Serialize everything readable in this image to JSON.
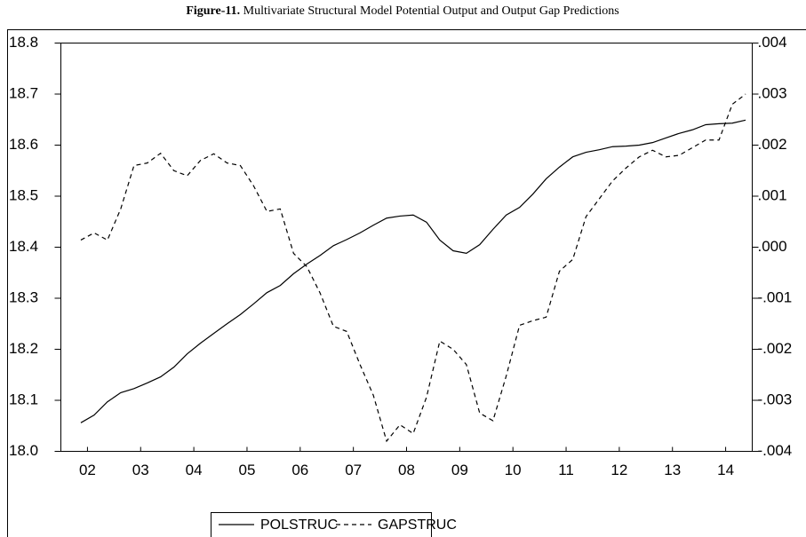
{
  "chart_data": {
    "type": "line",
    "title": {
      "label": "Figure-11.",
      "text": "Multivariate Structural Model Potential Output and Output Gap Predictions"
    },
    "x": [
      2002.375,
      2002.625,
      2002.875,
      2003.125,
      2003.375,
      2003.625,
      2003.875,
      2004.125,
      2004.375,
      2004.625,
      2004.875,
      2005.125,
      2005.375,
      2005.625,
      2005.875,
      2006.125,
      2006.375,
      2006.625,
      2006.875,
      2007.125,
      2007.375,
      2007.625,
      2007.875,
      2008.125,
      2008.375,
      2008.625,
      2008.875,
      2009.125,
      2009.375,
      2009.625,
      2009.875,
      2010.125,
      2010.375,
      2010.625,
      2010.875,
      2011.125,
      2011.375,
      2011.625,
      2011.875,
      2012.125,
      2012.375,
      2012.625,
      2012.875,
      2013.125,
      2013.375,
      2013.625,
      2013.875,
      2014.125,
      2014.375,
      2014.625,
      2014.875
    ],
    "xlim": [
      2002,
      2015
    ],
    "xticks": [
      {
        "value": 2002.5,
        "label": "02"
      },
      {
        "value": 2003.5,
        "label": "03"
      },
      {
        "value": 2004.5,
        "label": "04"
      },
      {
        "value": 2005.5,
        "label": "05"
      },
      {
        "value": 2006.5,
        "label": "06"
      },
      {
        "value": 2007.5,
        "label": "07"
      },
      {
        "value": 2008.5,
        "label": "08"
      },
      {
        "value": 2009.5,
        "label": "09"
      },
      {
        "value": 2010.5,
        "label": "10"
      },
      {
        "value": 2011.5,
        "label": "11"
      },
      {
        "value": 2012.5,
        "label": "12"
      },
      {
        "value": 2013.5,
        "label": "13"
      },
      {
        "value": 2014.5,
        "label": "14"
      }
    ],
    "ylim": [
      18.0,
      18.8
    ],
    "yticks": [
      {
        "value": 18.0,
        "label": "18.0"
      },
      18.1,
      18.2,
      18.3,
      18.4,
      18.5,
      18.6,
      18.7,
      18.8
    ],
    "y2lim": [
      -0.004,
      0.004
    ],
    "y2ticks": [
      {
        "value": -0.004,
        "label": "-.004"
      },
      {
        "value": -0.003,
        "label": "-.003"
      },
      {
        "value": -0.002,
        "label": "-.002"
      },
      {
        "value": -0.001,
        "label": "-.001"
      },
      {
        "value": 0,
        "label": ".000"
      },
      {
        "value": 0.001,
        "label": ".001"
      },
      {
        "value": 0.002,
        "label": ".002"
      },
      {
        "value": 0.003,
        "label": ".003"
      },
      {
        "value": 0.004,
        "label": ".004"
      }
    ],
    "grid": false,
    "legend": "bottom",
    "series": [
      {
        "name": "POLSTRUC",
        "color": "#000000",
        "style": "solid",
        "values": [
          18.056,
          18.071,
          18.097,
          18.115,
          18.123,
          18.134,
          18.146,
          18.165,
          18.191,
          18.212,
          18.231,
          18.25,
          18.268,
          18.289,
          18.311,
          18.325,
          18.348,
          18.367,
          18.384,
          18.403,
          18.415,
          18.428,
          18.443,
          18.457,
          18.461,
          18.463,
          18.449,
          18.414,
          18.393,
          18.388,
          18.405,
          18.435,
          18.463,
          18.478,
          18.504,
          18.534,
          18.557,
          18.577,
          18.586,
          18.591,
          18.597,
          18.598,
          18.6,
          18.605,
          18.614,
          18.623,
          18.63,
          18.64,
          18.642,
          18.643,
          18.649
        ]
      },
      {
        "name": "GAPSTRUC",
        "color": "#000000",
        "style": "dashed",
        "axis": "y2",
        "values": [
          0.00014,
          0.00028,
          0.00014,
          0.00075,
          0.0016,
          0.00165,
          0.00184,
          0.0015,
          0.0014,
          0.0017,
          0.00183,
          0.00165,
          0.0016,
          0.0012,
          0.0007,
          0.00075,
          -0.00012,
          -0.00038,
          -0.0009,
          -0.00155,
          -0.00165,
          -0.0023,
          -0.0029,
          -0.0038,
          -0.00348,
          -0.00365,
          -0.00294,
          -0.00184,
          -0.002,
          -0.0023,
          -0.00325,
          -0.0034,
          -0.00252,
          -0.00153,
          -0.00144,
          -0.00137,
          -0.00047,
          -0.00024,
          0.0006,
          0.00095,
          0.0013,
          0.00155,
          0.00177,
          0.0019,
          0.00177,
          0.0018,
          0.00195,
          0.0021,
          0.0021,
          0.0028,
          0.003
        ]
      }
    ]
  }
}
